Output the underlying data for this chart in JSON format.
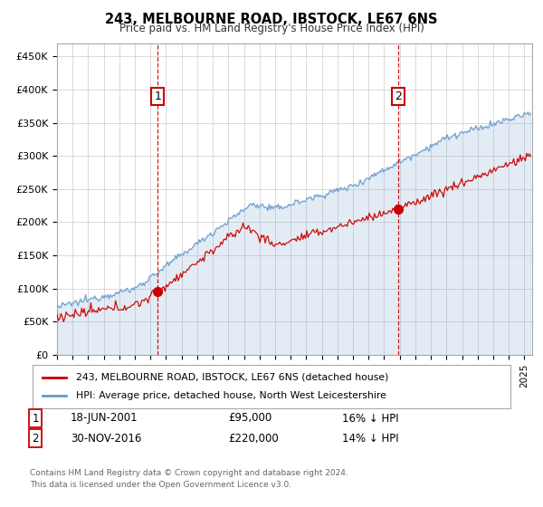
{
  "title": "243, MELBOURNE ROAD, IBSTOCK, LE67 6NS",
  "subtitle": "Price paid vs. HM Land Registry's House Price Index (HPI)",
  "ylabel_ticks": [
    "£0",
    "£50K",
    "£100K",
    "£150K",
    "£200K",
    "£250K",
    "£300K",
    "£350K",
    "£400K",
    "£450K"
  ],
  "ytick_values": [
    0,
    50000,
    100000,
    150000,
    200000,
    250000,
    300000,
    350000,
    400000,
    450000
  ],
  "ylim": [
    0,
    470000
  ],
  "xlim_start": 1995.0,
  "xlim_end": 2025.5,
  "sale1_x": 2001.46,
  "sale1_y": 95000,
  "sale2_x": 2016.92,
  "sale2_y": 220000,
  "vline1_x": 2001.46,
  "vline2_x": 2016.92,
  "red_color": "#cc0000",
  "blue_color": "#6699cc",
  "blue_fill_color": "#ddeeff",
  "legend_label1": "243, MELBOURNE ROAD, IBSTOCK, LE67 6NS (detached house)",
  "legend_label2": "HPI: Average price, detached house, North West Leicestershire",
  "annotation1_label": "1",
  "annotation2_label": "2",
  "table_row1": [
    "1",
    "18-JUN-2001",
    "£95,000",
    "16% ↓ HPI"
  ],
  "table_row2": [
    "2",
    "30-NOV-2016",
    "£220,000",
    "14% ↓ HPI"
  ],
  "footnote1": "Contains HM Land Registry data © Crown copyright and database right 2024.",
  "footnote2": "This data is licensed under the Open Government Licence v3.0.",
  "background_color": "#ffffff",
  "grid_color": "#cccccc"
}
